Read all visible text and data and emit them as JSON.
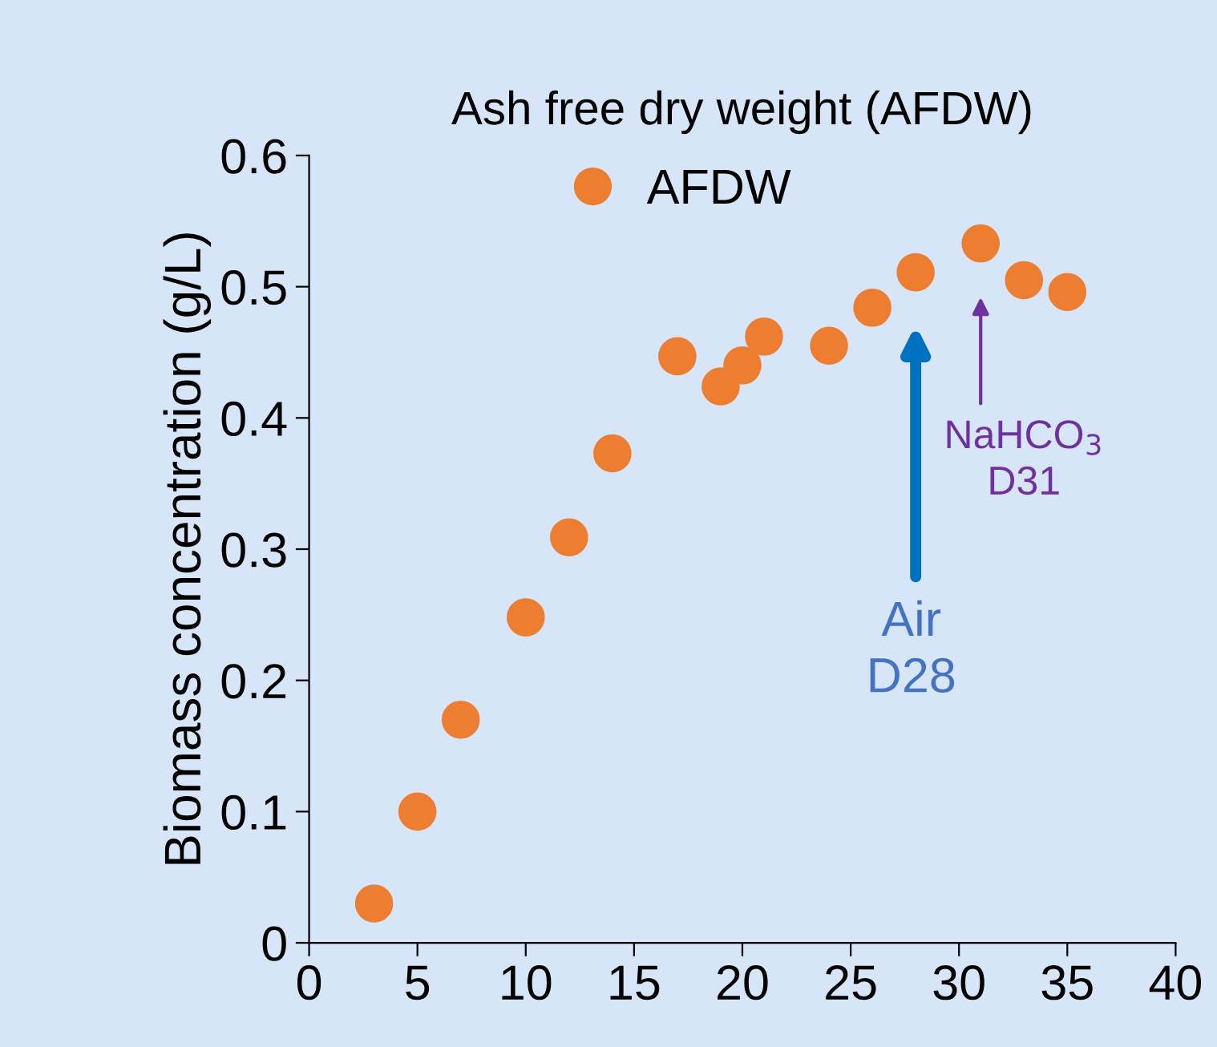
{
  "chart_data": {
    "type": "scatter",
    "title": "Ash free dry weight (AFDW)",
    "ylabel": "Biomass concentration (g/L)",
    "x": [
      3,
      5,
      7,
      10,
      12,
      14,
      17,
      19,
      20,
      21,
      24,
      26,
      28,
      31,
      33,
      35
    ],
    "series": [
      {
        "name": "AFDW",
        "color": "#ed7d31",
        "values": [
          0.03,
          0.1,
          0.17,
          0.248,
          0.309,
          0.373,
          0.447,
          0.424,
          0.44,
          0.462,
          0.455,
          0.484,
          0.511,
          0.533,
          0.505,
          0.496
        ]
      }
    ],
    "xlim": [
      0,
      40
    ],
    "xticks": [
      0,
      5,
      10,
      15,
      20,
      25,
      30,
      35,
      40
    ],
    "ylim": [
      0,
      0.6
    ],
    "yticks": [
      {
        "value": 0,
        "label": "0"
      },
      0.1,
      0.2,
      0.3,
      0.4,
      0.5,
      0.6
    ],
    "marker": "circle",
    "grid": false,
    "legend": "top left",
    "annotations": [
      "Air\nD28",
      "NaHCO$_{3}$\nD31"
    ]
  }
}
